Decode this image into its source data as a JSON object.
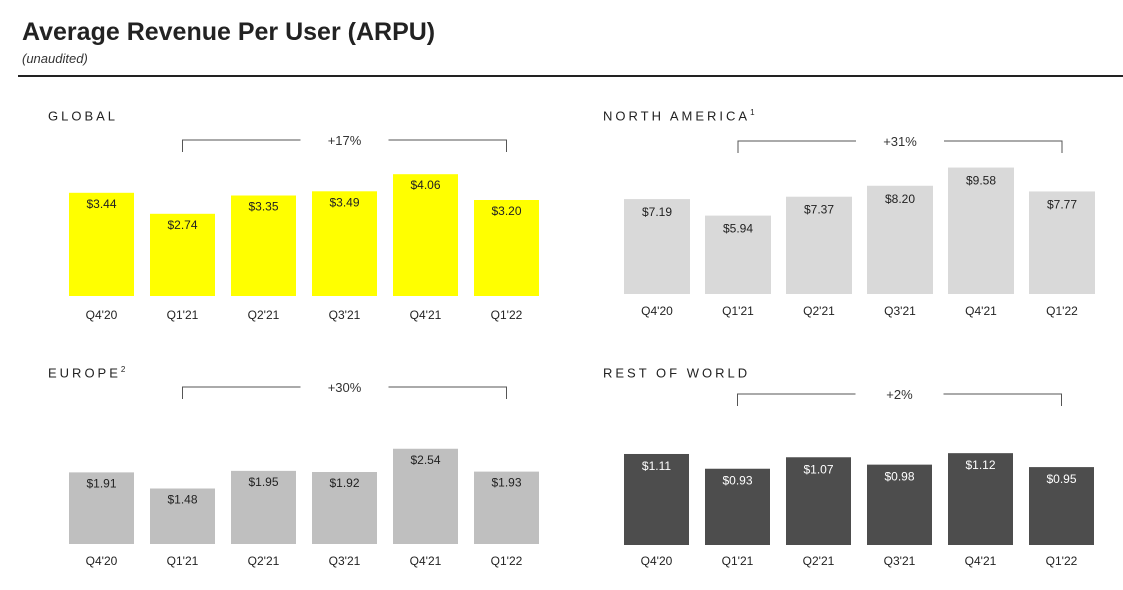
{
  "title": "Average Revenue Per User (ARPU)",
  "subtitle": "(unaudited)",
  "chart_data": [
    {
      "type": "bar",
      "region": "GLOBAL",
      "footnote": "",
      "color": "#ffff00",
      "value_label_color": "#222222",
      "categories": [
        "Q4'20",
        "Q1'21",
        "Q2'21",
        "Q3'21",
        "Q4'21",
        "Q1'22"
      ],
      "values": [
        3.44,
        2.74,
        3.35,
        3.49,
        4.06,
        3.2
      ],
      "value_labels": [
        "$3.44",
        "$2.74",
        "$3.35",
        "$3.49",
        "$4.06",
        "$3.20"
      ],
      "growth_label": "+17%",
      "growth_from": "Q1'21",
      "growth_to": "Q1'22"
    },
    {
      "type": "bar",
      "region": "NORTH AMERICA",
      "footnote": "1",
      "color": "#d9d9d9",
      "value_label_color": "#222222",
      "categories": [
        "Q4'20",
        "Q1'21",
        "Q2'21",
        "Q3'21",
        "Q4'21",
        "Q1'22"
      ],
      "values": [
        7.19,
        5.94,
        7.37,
        8.2,
        9.58,
        7.77
      ],
      "value_labels": [
        "$7.19",
        "$5.94",
        "$7.37",
        "$8.20",
        "$9.58",
        "$7.77"
      ],
      "growth_label": "+31%",
      "growth_from": "Q1'21",
      "growth_to": "Q1'22"
    },
    {
      "type": "bar",
      "region": "EUROPE",
      "footnote": "2",
      "color": "#bfbfbf",
      "value_label_color": "#222222",
      "categories": [
        "Q4'20",
        "Q1'21",
        "Q2'21",
        "Q3'21",
        "Q4'21",
        "Q1'22"
      ],
      "values": [
        1.91,
        1.48,
        1.95,
        1.92,
        2.54,
        1.93
      ],
      "value_labels": [
        "$1.91",
        "$1.48",
        "$1.95",
        "$1.92",
        "$2.54",
        "$1.93"
      ],
      "growth_label": "+30%",
      "growth_from": "Q1'21",
      "growth_to": "Q1'22"
    },
    {
      "type": "bar",
      "region": "REST OF WORLD",
      "footnote": "",
      "color": "#4d4d4d",
      "value_label_color": "#ffffff",
      "categories": [
        "Q4'20",
        "Q1'21",
        "Q2'21",
        "Q3'21",
        "Q4'21",
        "Q1'22"
      ],
      "values": [
        1.11,
        0.93,
        1.07,
        0.98,
        1.12,
        0.95
      ],
      "value_labels": [
        "$1.11",
        "$0.93",
        "$1.07",
        "$0.98",
        "$1.12",
        "$0.95"
      ],
      "growth_label": "+2%",
      "growth_from": "Q1'21",
      "growth_to": "Q1'22"
    }
  ]
}
